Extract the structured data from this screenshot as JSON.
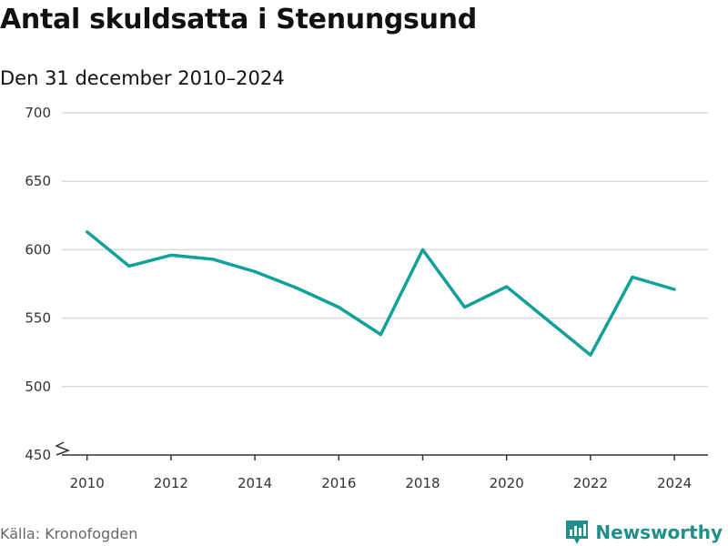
{
  "chart_data": {
    "type": "line",
    "title": "Antal skuldsatta i Stenungsund",
    "subtitle": "Den 31 december 2010–2024",
    "xlabel": "",
    "ylabel": "",
    "ylim": [
      450,
      700
    ],
    "xlim": [
      2009.4,
      2024.8
    ],
    "yticks": [
      450,
      500,
      550,
      600,
      650,
      700
    ],
    "xticks": [
      2010,
      2012,
      2014,
      2016,
      2018,
      2020,
      2022,
      2024
    ],
    "grid": true,
    "axis_break": true,
    "series": [
      {
        "name": "Antal skuldsatta",
        "color": "#12a09a",
        "x": [
          2010,
          2011,
          2012,
          2013,
          2014,
          2015,
          2016,
          2017,
          2018,
          2019,
          2020,
          2021,
          2022,
          2023,
          2024
        ],
        "y": [
          613,
          588,
          596,
          593,
          584,
          572,
          558,
          538,
          600,
          558,
          573,
          548,
          523,
          580,
          571
        ]
      }
    ]
  },
  "footer": {
    "source": "Källa: Kronofogden",
    "brand": "Newsworthy"
  },
  "colors": {
    "line": "#12a09a",
    "brand": "#1f8f8a",
    "grid": "#d9d9d9"
  }
}
